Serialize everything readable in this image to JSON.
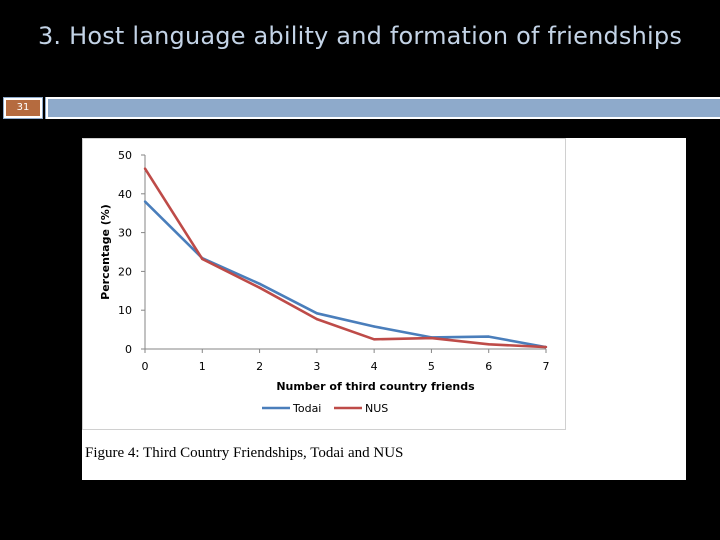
{
  "slide": {
    "title": "3. Host language ability and formation of friendships",
    "number": "31"
  },
  "figure": {
    "caption": "Figure 4: Third Country Friendships, Todai and NUS"
  },
  "colors": {
    "background": "#000000",
    "title": "#c3d3e6",
    "header_bar": "#8eaacb",
    "slide_number_fill": "#b56b3f",
    "todai": "#4a7ebb",
    "nus": "#be4b48"
  },
  "chart_data": {
    "type": "line",
    "title": "",
    "xlabel": "Number of third country friends",
    "ylabel": "Percentage (%)",
    "xlim": [
      0,
      7
    ],
    "ylim": [
      0,
      50
    ],
    "x_ticks": [
      0,
      1,
      2,
      3,
      4,
      5,
      6,
      7
    ],
    "y_ticks": [
      0,
      10,
      20,
      30,
      40,
      50
    ],
    "grid": false,
    "legend": "bottom",
    "x": [
      0,
      1,
      2,
      3,
      4,
      5,
      6,
      7
    ],
    "series": [
      {
        "name": "Todai",
        "color": "#4a7ebb",
        "values": [
          38,
          23.4,
          16.8,
          9.2,
          5.8,
          3.0,
          3.2,
          0.5
        ]
      },
      {
        "name": "NUS",
        "color": "#be4b48",
        "values": [
          46.5,
          23.2,
          15.8,
          7.7,
          2.5,
          2.8,
          1.2,
          0.5
        ]
      }
    ]
  }
}
